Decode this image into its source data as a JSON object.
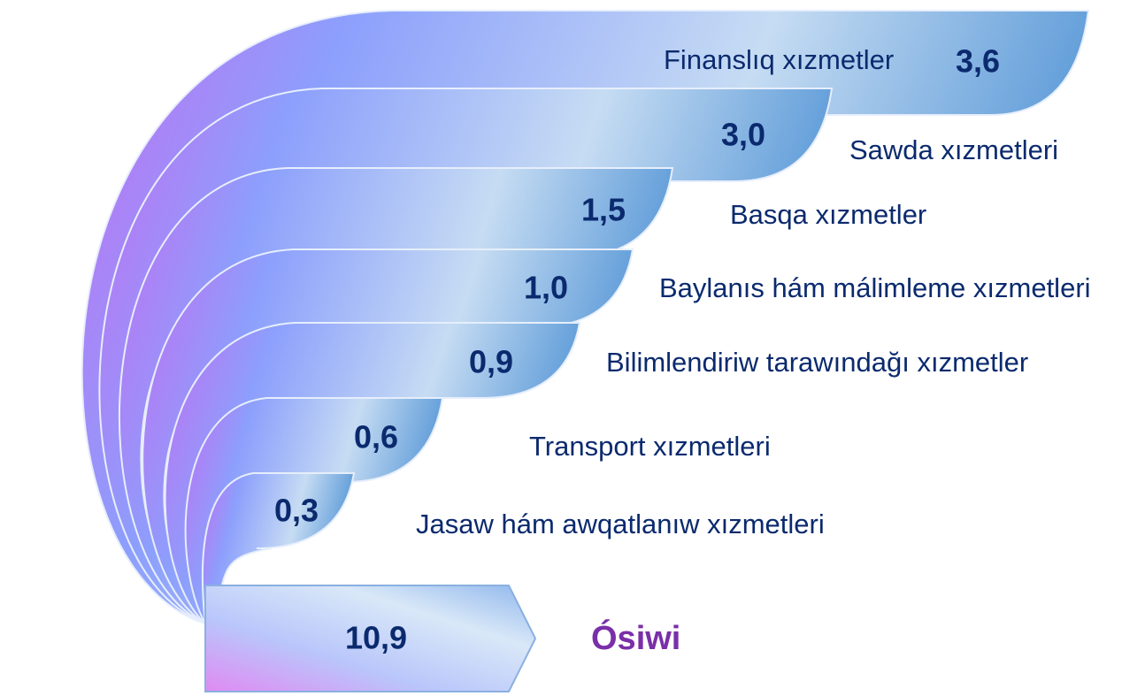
{
  "items": [
    {
      "value": "3,6",
      "label": "Finanslıq xızmetler"
    },
    {
      "value": "3,0",
      "label": "Sawda xızmetleri"
    },
    {
      "value": "1,5",
      "label": "Basqa xızmetler"
    },
    {
      "value": "1,0",
      "label": "Baylanıs hám málimleme xızmetleri"
    },
    {
      "value": "0,9",
      "label": "Bilimlendiriw tarawındağı xızmetler"
    },
    {
      "value": "0,6",
      "label": "Transport xızmetleri"
    },
    {
      "value": "0,3",
      "label": "Jasaw hám awqatlanıw xızmetleri"
    }
  ],
  "total": {
    "value": "10,9",
    "label": "Ósiwi"
  }
}
